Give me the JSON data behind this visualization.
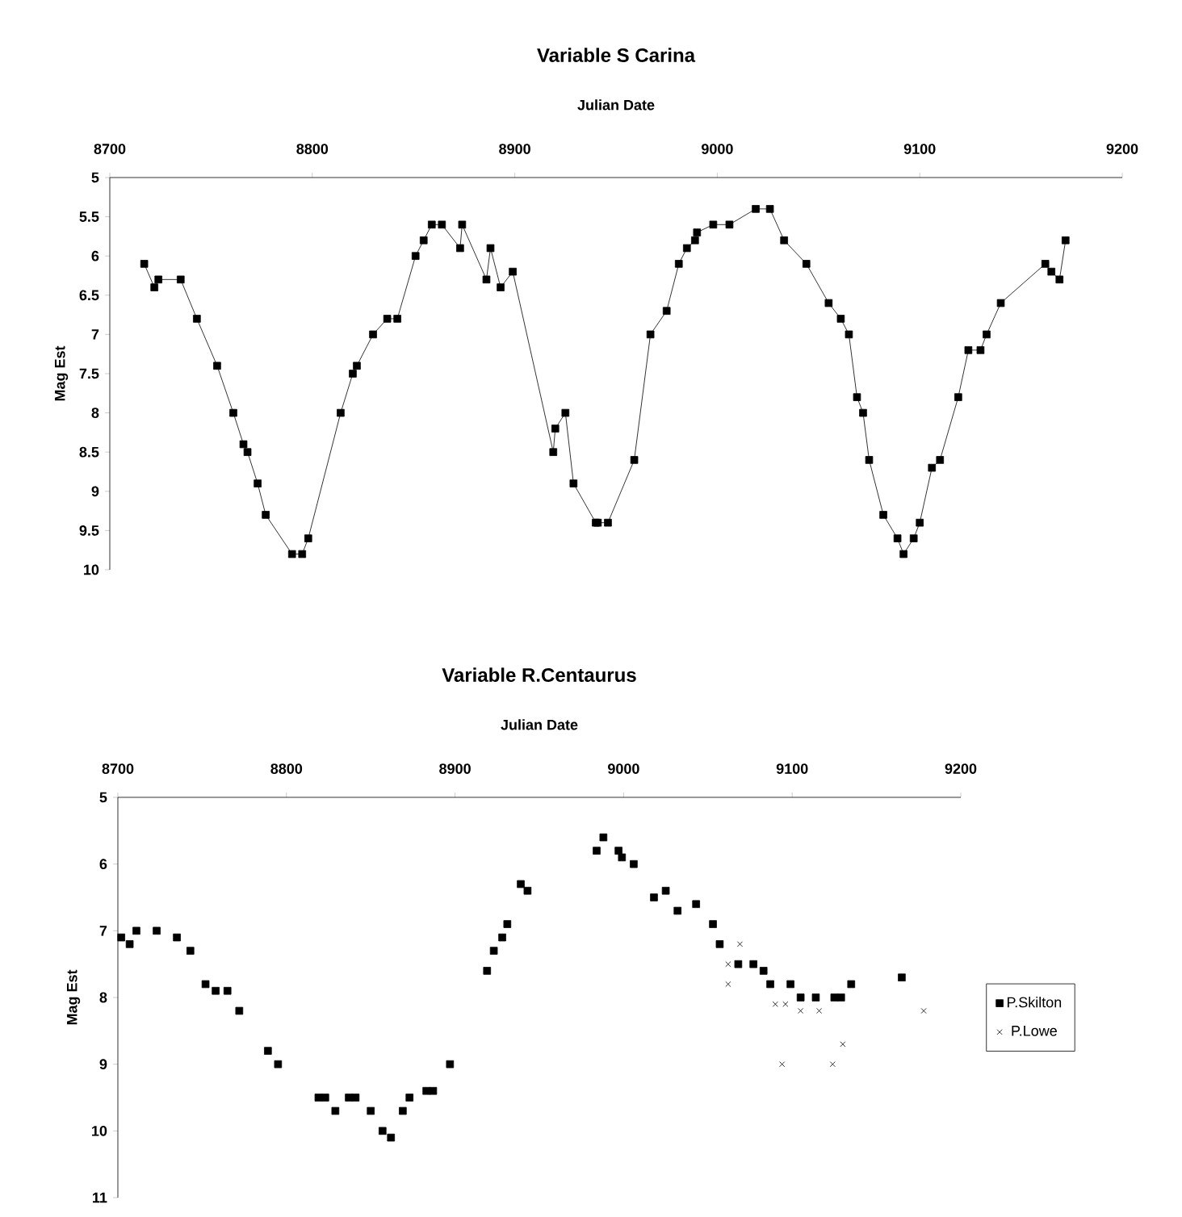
{
  "chart_data": [
    {
      "type": "line",
      "title": "Variable S Carina",
      "xlabel": "Julian Date",
      "ylabel": "Mag Est",
      "xlim": [
        8700,
        9200
      ],
      "xticks": [
        8700,
        8800,
        8900,
        9000,
        9100,
        9200
      ],
      "ylim": [
        10,
        5
      ],
      "yticks": [
        5,
        5.5,
        6,
        6.5,
        7,
        7.5,
        8,
        8.5,
        9,
        9.5,
        10
      ],
      "marker": "square",
      "line_style": "solid",
      "grid": false,
      "series": [
        {
          "color": "#000000",
          "x": [
            8717,
            8722,
            8724,
            8735,
            8743,
            8753,
            8761,
            8766,
            8768,
            8773,
            8777,
            8790,
            8795,
            8798,
            8814,
            8820,
            8822,
            8830,
            8837,
            8842,
            8851,
            8855,
            8859,
            8864,
            8873,
            8874,
            8886,
            8888,
            8893,
            8899,
            8919,
            8920,
            8925,
            8929,
            8940,
            8941,
            8946,
            8959,
            8967,
            8975,
            8981,
            8985,
            8989,
            8990,
            8998,
            9006,
            9019,
            9026,
            9033,
            9044,
            9055,
            9061,
            9065,
            9069,
            9072,
            9075,
            9082,
            9089,
            9092,
            9097,
            9100,
            9106,
            9110,
            9119,
            9124,
            9130,
            9133,
            9140,
            9162,
            9165,
            9169,
            9172
          ],
          "values": [
            6.1,
            6.4,
            6.3,
            6.3,
            6.8,
            7.4,
            8.0,
            8.4,
            8.5,
            8.9,
            9.3,
            9.8,
            9.8,
            9.6,
            8.0,
            7.5,
            7.4,
            7.0,
            6.8,
            6.8,
            6.0,
            5.8,
            5.6,
            5.6,
            5.9,
            5.6,
            6.3,
            5.9,
            6.4,
            6.2,
            8.5,
            8.2,
            8.0,
            8.9,
            9.4,
            9.4,
            9.4,
            8.6,
            7.0,
            6.7,
            6.1,
            5.9,
            5.8,
            5.7,
            5.6,
            5.6,
            5.4,
            5.4,
            5.8,
            6.1,
            6.6,
            6.8,
            7.0,
            7.8,
            8.0,
            8.6,
            9.3,
            9.6,
            9.8,
            9.6,
            9.4,
            8.7,
            8.6,
            7.8,
            7.2,
            7.2,
            7.0,
            6.6,
            6.1,
            6.2,
            6.3,
            5.8
          ]
        }
      ]
    },
    {
      "type": "scatter",
      "title": "Variable R.Centaurus",
      "xlabel": "Julian Date",
      "ylabel": "Mag Est",
      "xlim": [
        8700,
        9200
      ],
      "xticks": [
        8700,
        8800,
        8900,
        9000,
        9100,
        9200
      ],
      "ylim": [
        11,
        5
      ],
      "yticks": [
        5,
        6,
        7,
        8,
        9,
        10,
        11
      ],
      "legend": "right",
      "grid": false,
      "series": [
        {
          "name": "P.Skilton",
          "color": "#000000",
          "marker": "square",
          "x": [
            8702,
            8707,
            8711,
            8723,
            8735,
            8743,
            8752,
            8758,
            8765,
            8772,
            8789,
            8795,
            8819,
            8823,
            8829,
            8837,
            8841,
            8850,
            8857,
            8862,
            8869,
            8873,
            8883,
            8887,
            8897,
            8919,
            8923,
            8928,
            8931,
            8939,
            8943,
            8984,
            8988,
            8997,
            8999,
            9006,
            9018,
            9025,
            9032,
            9043,
            9053,
            9057,
            9068,
            9077,
            9083,
            9087,
            9099,
            9105,
            9114,
            9125,
            9129,
            9135,
            9165
          ],
          "values": [
            7.1,
            7.2,
            7.0,
            7.0,
            7.1,
            7.3,
            7.8,
            7.9,
            7.9,
            8.2,
            8.8,
            9.0,
            9.5,
            9.5,
            9.7,
            9.5,
            9.5,
            9.7,
            10.0,
            10.1,
            9.7,
            9.5,
            9.4,
            9.4,
            9.0,
            7.6,
            7.3,
            7.1,
            6.9,
            6.3,
            6.4,
            5.8,
            5.6,
            5.8,
            5.9,
            6.0,
            6.5,
            6.4,
            6.7,
            6.6,
            6.9,
            7.2,
            7.5,
            7.5,
            7.6,
            7.8,
            7.8,
            8.0,
            8.0,
            8.0,
            8.0,
            7.8,
            7.7
          ]
        },
        {
          "name": "P.Lowe",
          "color": "#000000",
          "marker": "cross",
          "x": [
            9062,
            9062,
            9069,
            9090,
            9094,
            9096,
            9105,
            9116,
            9124,
            9130,
            9178
          ],
          "values": [
            7.5,
            7.8,
            7.2,
            8.1,
            9.0,
            8.1,
            8.2,
            8.2,
            9.0,
            8.7,
            8.2
          ]
        }
      ]
    }
  ]
}
